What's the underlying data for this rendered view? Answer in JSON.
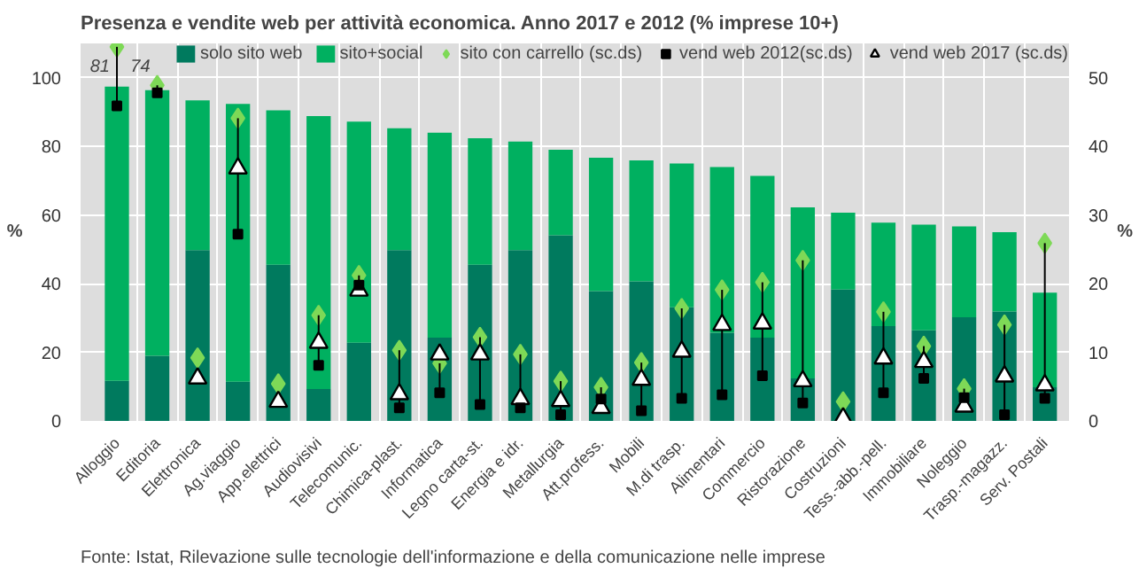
{
  "chart_data": {
    "type": "bar",
    "title": "Presenza e vendite web per attività economica. Anno 2017 e 2012 (% imprese 10+)",
    "ylabel": "%",
    "y2label": "%",
    "categories": [
      "Alloggio",
      "Editoria",
      "Elettronica",
      "Ag.viaggio",
      "App.elettrici",
      "Audiovisivi",
      "Telecomunic.",
      "Chimica-plast.",
      "Informatica",
      "Legno carta-st.",
      "Energia e idr.",
      "Metallurgia",
      "Att.profess.",
      "Mobili",
      "M.di trasp.",
      "Alimentari",
      "Commercio",
      "Ristorazione",
      "Costruzioni",
      "Tess.-abb.-pell.",
      "Immobiliare",
      "Noleggio",
      "Trasp.-magazz.",
      "Serv. Postali"
    ],
    "stacked": true,
    "series": [
      {
        "name": "solo sito web",
        "color": "#007a5e",
        "values": [
          11.7,
          19.0,
          49.8,
          11.4,
          45.5,
          9.3,
          22.8,
          49.8,
          24.3,
          45.5,
          49.8,
          54.1,
          37.8,
          40.7,
          33.1,
          25.7,
          24.3,
          12.4,
          38.3,
          27.6,
          26.4,
          30.2,
          31.9,
          9.8
        ]
      },
      {
        "name": "sito+social",
        "color": "#00b060",
        "values": [
          85.7,
          77.4,
          43.6,
          81.0,
          45.0,
          79.5,
          64.4,
          35.5,
          59.7,
          36.9,
          31.6,
          24.9,
          38.9,
          35.2,
          41.9,
          48.3,
          47.1,
          49.8,
          22.4,
          30.2,
          30.8,
          26.5,
          23.1,
          27.6
        ]
      },
      {
        "name": "sito con carrello (sc.ds)",
        "type": "scatter",
        "axis": "y2",
        "marker": "diamond",
        "color": "#7ed957",
        "values": [
          54.5,
          48.9,
          9.2,
          44.1,
          5.4,
          15.4,
          21.2,
          10.3,
          8.4,
          12.2,
          9.7,
          5.8,
          4.9,
          8.5,
          16.4,
          19.1,
          20.2,
          23.4,
          2.8,
          15.9,
          10.9,
          4.7,
          14.0,
          25.9
        ]
      },
      {
        "name": "vend web 2012(sc.ds)",
        "type": "scatter",
        "axis": "y2",
        "marker": "square",
        "color": "#000000",
        "values": [
          45.9,
          47.8,
          null,
          27.2,
          null,
          8.1,
          19.8,
          1.9,
          4.1,
          2.4,
          1.9,
          0.9,
          3.2,
          1.5,
          3.3,
          3.8,
          6.6,
          2.6,
          null,
          4.1,
          6.2,
          3.4,
          0.9,
          3.3
        ]
      },
      {
        "name": "vend web 2017 (sc.ds)",
        "type": "scatter",
        "axis": "y2",
        "marker": "triangle",
        "color": "#000000",
        "values": [
          null,
          null,
          6.2,
          36.8,
          2.8,
          11.4,
          19.0,
          3.9,
          9.7,
          9.7,
          3.2,
          2.9,
          1.9,
          6.0,
          10.1,
          14.0,
          14.2,
          5.8,
          0.4,
          9.1,
          8.6,
          2.1,
          6.5,
          5.2
        ]
      }
    ],
    "ylim": [
      0,
      110
    ],
    "yticks": [
      0,
      20,
      40,
      60,
      80,
      100
    ],
    "y2lim": [
      0,
      55
    ],
    "y2ticks": [
      0,
      10,
      20,
      30,
      40,
      50
    ],
    "grid": true,
    "legend": "top",
    "annotations": [
      "81",
      "74",
      "Fonte: Istat, Rilevazione sulle tecnologie dell'informazione e della comunicazione nelle imprese"
    ]
  }
}
